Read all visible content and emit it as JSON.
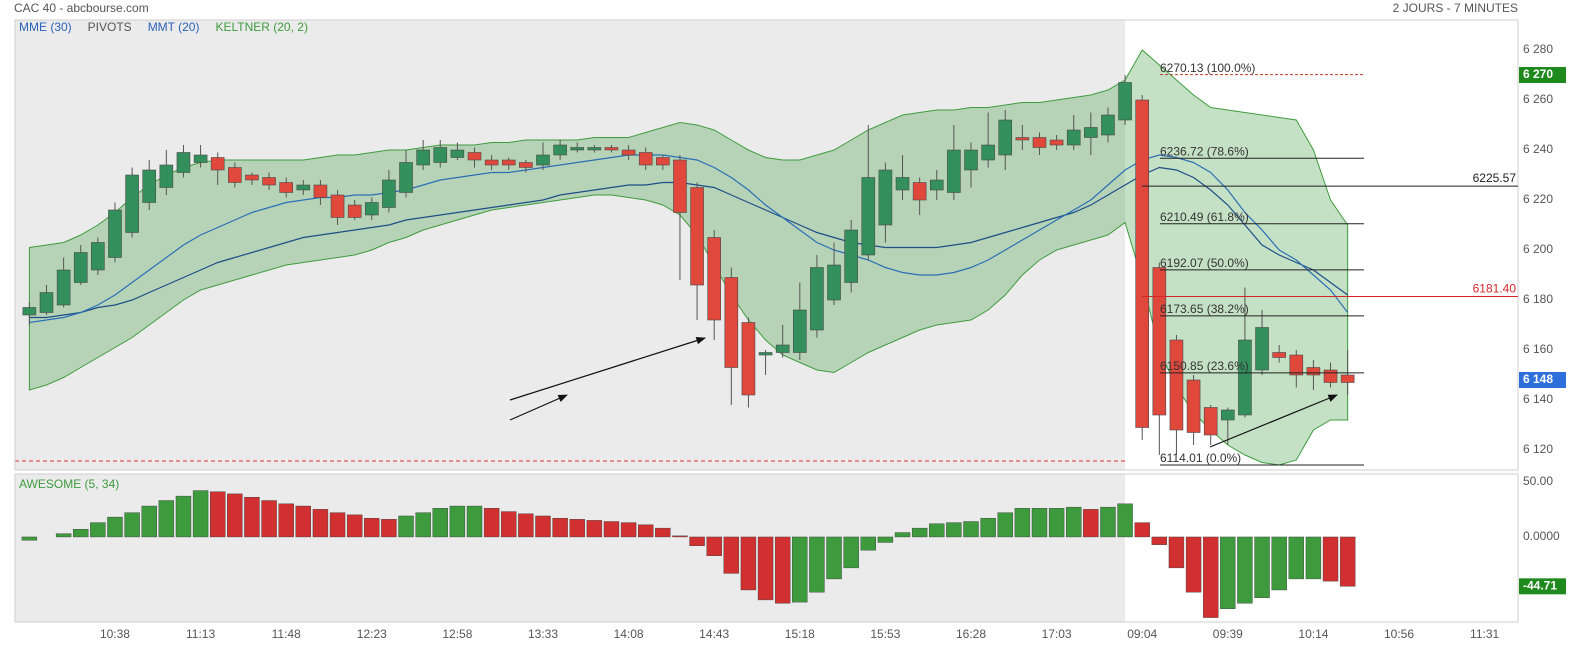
{
  "header": {
    "title": "CAC 40 - abcbourse.com",
    "period": "2 JOURS - 7 MINUTES"
  },
  "chart_data": [
    {
      "type": "candlestick",
      "xlim": [
        -0.84,
        86.95
      ],
      "xticks": [
        {
          "value": 5,
          "label": "10:38"
        },
        {
          "value": 10,
          "label": "11:13"
        },
        {
          "value": 15,
          "label": "11:48"
        },
        {
          "value": 20,
          "label": "12:23"
        },
        {
          "value": 25,
          "label": "12:58"
        },
        {
          "value": 30,
          "label": "13:33"
        },
        {
          "value": 35,
          "label": "14:08"
        },
        {
          "value": 40,
          "label": "14:43"
        },
        {
          "value": 45,
          "label": "15:18"
        },
        {
          "value": 50,
          "label": "15:53"
        },
        {
          "value": 55,
          "label": "16:28"
        },
        {
          "value": 60,
          "label": "17:03"
        },
        {
          "value": 65,
          "label": "09:04"
        },
        {
          "value": 70,
          "label": "09:39"
        },
        {
          "value": 75,
          "label": "10:14"
        },
        {
          "value": 80,
          "label": "10:56"
        },
        {
          "value": 85,
          "label": "11:31"
        }
      ],
      "ylim": [
        6112,
        6292
      ],
      "yticks": [
        {
          "value": 6120,
          "label": "6 120"
        },
        {
          "value": 6140,
          "label": "6 140"
        },
        {
          "value": 6160,
          "label": "6 160"
        },
        {
          "value": 6180,
          "label": "6 180"
        },
        {
          "value": 6200,
          "label": "6 200"
        },
        {
          "value": 6220,
          "label": "6 220"
        },
        {
          "value": 6240,
          "label": "6 240"
        },
        {
          "value": 6260,
          "label": "6 260"
        },
        {
          "value": 6280,
          "label": "6 280"
        }
      ],
      "grid": true,
      "up_color": "#33905c",
      "down_color": "#e0483c",
      "open": [
        6174,
        6175,
        6178,
        6187,
        6192,
        6197,
        6207,
        6219,
        6225,
        6231,
        6235,
        6237,
        6233,
        6230,
        6229,
        6227,
        6224,
        6226,
        6222,
        6218,
        6214,
        6217,
        6223,
        6234,
        6235,
        6237,
        6239,
        6236,
        6236,
        6235,
        6234,
        6238,
        6240,
        6240,
        6241,
        6240,
        6239,
        6237,
        6236,
        6225,
        6205,
        6189,
        6171,
        6158,
        6159,
        6159,
        6168,
        6180,
        6187,
        6198,
        6210,
        6224,
        6227,
        6224,
        6223,
        6232,
        6236,
        6238,
        6245,
        6245,
        6244,
        6242,
        6245,
        6246,
        6252,
        6260,
        6193,
        6164,
        6148,
        6137,
        6132,
        6134,
        6152,
        6159,
        6158,
        6153,
        6152,
        6150
      ],
      "high": [
        6179,
        6186,
        6197,
        6202,
        6205,
        6219,
        6233,
        6236,
        6240,
        6242,
        6242,
        6239,
        6235,
        6231,
        6231,
        6229,
        6228,
        6228,
        6224,
        6220,
        6221,
        6232,
        6240,
        6244,
        6244,
        6243,
        6241,
        6238,
        6237,
        6236,
        6243,
        6244,
        6243,
        6242,
        6242,
        6242,
        6241,
        6238,
        6238,
        6227,
        6208,
        6193,
        6173,
        6160,
        6170,
        6187,
        6198,
        6203,
        6212,
        6250,
        6235,
        6238,
        6229,
        6232,
        6250,
        6243,
        6255,
        6256,
        6250,
        6247,
        6246,
        6254,
        6255,
        6257,
        6270,
        6262,
        6195,
        6166,
        6150,
        6138,
        6137,
        6185,
        6176,
        6162,
        6160,
        6156,
        6155,
        6160
      ],
      "low": [
        6170,
        6174,
        6177,
        6186,
        6190,
        6195,
        6205,
        6216,
        6222,
        6229,
        6233,
        6226,
        6225,
        6226,
        6224,
        6221,
        6222,
        6218,
        6210,
        6212,
        6212,
        6215,
        6221,
        6232,
        6233,
        6236,
        6233,
        6232,
        6232,
        6231,
        6232,
        6236,
        6239,
        6239,
        6239,
        6236,
        6232,
        6232,
        6188,
        6172,
        6164,
        6138,
        6137,
        6150,
        6157,
        6156,
        6165,
        6178,
        6183,
        6196,
        6203,
        6220,
        6214,
        6220,
        6220,
        6225,
        6233,
        6232,
        6240,
        6238,
        6240,
        6240,
        6238,
        6243,
        6250,
        6124,
        6118,
        6118,
        6122,
        6122,
        6122,
        6133,
        6150,
        6155,
        6145,
        6144,
        6145,
        6142
      ],
      "close": [
        6177,
        6183,
        6192,
        6199,
        6203,
        6216,
        6230,
        6232,
        6234,
        6239,
        6238,
        6232,
        6227,
        6228,
        6226,
        6223,
        6226,
        6221,
        6213,
        6213,
        6219,
        6228,
        6235,
        6240,
        6241,
        6240,
        6236,
        6234,
        6234,
        6233,
        6238,
        6242,
        6241,
        6241,
        6240,
        6238,
        6234,
        6234,
        6215,
        6186,
        6172,
        6153,
        6142,
        6159,
        6162,
        6176,
        6193,
        6194,
        6208,
        6229,
        6232,
        6229,
        6220,
        6228,
        6240,
        6240,
        6242,
        6252,
        6244,
        6241,
        6242,
        6248,
        6249,
        6254,
        6267,
        6129,
        6134,
        6128,
        6127,
        6126,
        6136,
        6164,
        6169,
        6157,
        6150,
        6150,
        6147,
        6147
      ],
      "series": [
        {
          "name": "MME (30)",
          "color": "#1d4f86",
          "label_color": "#2a62b8",
          "values": [
            6173,
            6173,
            6174,
            6175,
            6177,
            6178,
            6180,
            6183,
            6186,
            6189,
            6192,
            6195,
            6197,
            6199,
            6201,
            6203,
            6205,
            6206,
            6207,
            6208,
            6209,
            6210,
            6212,
            6213,
            6214,
            6215,
            6216,
            6217,
            6218,
            6219,
            6220,
            6222,
            6223,
            6224,
            6225,
            6226,
            6226,
            6227,
            6227,
            6226,
            6225,
            6222,
            6219,
            6216,
            6213,
            6210,
            6207,
            6205,
            6203,
            6202,
            6201,
            6201,
            6201,
            6201,
            6202,
            6203,
            6205,
            6207,
            6209,
            6211,
            6213,
            6215,
            6218,
            6222,
            6226,
            6230,
            6233,
            6232,
            6229,
            6224,
            6218,
            6210,
            6202,
            6198,
            6195,
            6192,
            6187,
            6182
          ]
        },
        {
          "name": "PIVOTS",
          "color": "#e03030",
          "label_color": "#555555",
          "level": 6115.6
        },
        {
          "name": "MMT (20)",
          "color": "#2a6fb5",
          "label_color": "#2a62b8",
          "values": [
            6171,
            6172,
            6173,
            6175,
            6178,
            6182,
            6187,
            6192,
            6197,
            6202,
            6206,
            6209,
            6212,
            6215,
            6217,
            6219,
            6220,
            6221,
            6221,
            6222,
            6222,
            6223,
            6224,
            6226,
            6228,
            6229,
            6230,
            6231,
            6231,
            6232,
            6233,
            6234,
            6235,
            6236,
            6237,
            6238,
            6238,
            6238,
            6237,
            6236,
            6233,
            6229,
            6224,
            6218,
            6213,
            6208,
            6203,
            6200,
            6198,
            6196,
            6193,
            6191,
            6190,
            6190,
            6191,
            6193,
            6196,
            6200,
            6204,
            6208,
            6212,
            6216,
            6220,
            6226,
            6232,
            6236,
            6238,
            6237,
            6235,
            6231,
            6224,
            6215,
            6208,
            6200,
            6196,
            6190,
            6184,
            6175
          ]
        },
        {
          "name": "KELTNER (20, 2)",
          "color": "#3f9b3f",
          "label_color": "#3f9b3f",
          "upper": [
            6201,
            6202,
            6203,
            6206,
            6210,
            6215,
            6221,
            6226,
            6230,
            6233,
            6235,
            6236,
            6236,
            6236,
            6236,
            6236,
            6236,
            6237,
            6238,
            6238,
            6239,
            6240,
            6240,
            6241,
            6242,
            6242,
            6242,
            6243,
            6243,
            6244,
            6244,
            6244,
            6244,
            6245,
            6245,
            6245,
            6247,
            6249,
            6251,
            6250,
            6248,
            6244,
            6240,
            6237,
            6236,
            6236,
            6238,
            6240,
            6244,
            6248,
            6251,
            6254,
            6255,
            6256,
            6256,
            6257,
            6257,
            6258,
            6259,
            6259,
            6260,
            6261,
            6262,
            6264,
            6268,
            6280,
            6274,
            6268,
            6262,
            6257,
            6256,
            6255,
            6254,
            6253,
            6252,
            6240,
            6220,
            6210
          ],
          "lower": [
            6144,
            6146,
            6149,
            6153,
            6157,
            6161,
            6165,
            6170,
            6175,
            6180,
            6184,
            6186,
            6188,
            6190,
            6192,
            6194,
            6195,
            6196,
            6197,
            6198,
            6200,
            6203,
            6205,
            6208,
            6210,
            6212,
            6214,
            6216,
            6217,
            6218,
            6219,
            6220,
            6221,
            6222,
            6222,
            6221,
            6220,
            6218,
            6214,
            6206,
            6194,
            6182,
            6172,
            6164,
            6158,
            6155,
            6152,
            6151,
            6155,
            6159,
            6162,
            6165,
            6168,
            6170,
            6171,
            6172,
            6176,
            6182,
            6190,
            6196,
            6200,
            6202,
            6204,
            6206,
            6211,
            6188,
            6160,
            6145,
            6135,
            6128,
            6122,
            6118,
            6115,
            6114,
            6116,
            6128,
            6132,
            6132
          ]
        }
      ],
      "fibonacci": {
        "color": "#222222",
        "top_color": "#c0392b",
        "levels": [
          {
            "value": 6270.13,
            "label": "6270.13  (100.0%)"
          },
          {
            "value": 6236.72,
            "label": "6236.72  (78.6%)"
          },
          {
            "value": 6210.49,
            "label": "6210.49  (61.8%)"
          },
          {
            "value": 6192.07,
            "label": "6192.07  (50.0%)"
          },
          {
            "value": 6173.65,
            "label": "6173.65  (38.2%)"
          },
          {
            "value": 6150.85,
            "label": "6150.85  (23.6%)"
          },
          {
            "value": 6114.01,
            "label": "6114.01  (0.0%)"
          }
        ]
      },
      "lines": [
        {
          "value": 6225.57,
          "color": "#222222"
        },
        {
          "value": 6181.4,
          "label": "6181.40",
          "color": "#d62728"
        }
      ],
      "price_tags": [
        {
          "value": 6270,
          "label": "6 270",
          "color": "#1e8a1e"
        },
        {
          "value": 6148,
          "label": "6 148",
          "color": "#2f6fdc"
        }
      ]
    },
    {
      "type": "awesome",
      "title": "AWESOME (5, 34)",
      "ylim": [
        -77,
        57
      ],
      "yticks": [
        {
          "value": 50,
          "label": "50.00"
        },
        {
          "value": 0,
          "label": "0.0000"
        }
      ],
      "up_color": "#3d9a3d",
      "down_color": "#d03030",
      "tag_color": "#1e8a1e",
      "values": [
        -3,
        0,
        3,
        7,
        13,
        18,
        22,
        28,
        33,
        37,
        42,
        41,
        39,
        36,
        33,
        30,
        28,
        25,
        22,
        20,
        17,
        16,
        19,
        22,
        26,
        28,
        28,
        26,
        23,
        21,
        19,
        17,
        16,
        15,
        14,
        13,
        11,
        8,
        1,
        -8,
        -17,
        -33,
        -48,
        -57,
        -60,
        -59,
        -50,
        -38,
        -28,
        -12,
        -5,
        4,
        8,
        12,
        13,
        14,
        17,
        22,
        26,
        26,
        26,
        27,
        25,
        27,
        30,
        13,
        -7,
        -28,
        -50,
        -73,
        -65,
        -60,
        -55,
        -48,
        -38,
        -38,
        -40,
        -44.71
      ]
    }
  ]
}
